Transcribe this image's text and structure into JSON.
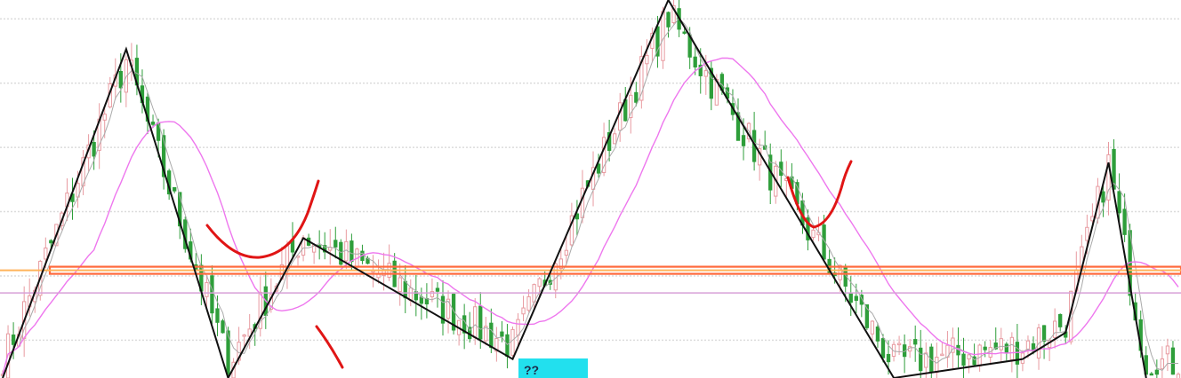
{
  "chart_data": {
    "type": "candlestick",
    "title": "",
    "xlabel": "",
    "ylabel": "",
    "ylim": [
      0,
      100
    ],
    "grid": true,
    "support_level": 28.5,
    "lower_line_level": 22.5,
    "candles": [],
    "zigzag_points": [
      [
        0,
        0
      ],
      [
        23,
        87
      ],
      [
        42,
        0
      ],
      [
        56,
        37
      ],
      [
        95,
        5
      ],
      [
        124,
        100
      ],
      [
        166,
        0
      ],
      [
        190,
        5
      ],
      [
        198,
        12
      ],
      [
        206,
        57
      ],
      [
        213,
        0
      ]
    ],
    "label_text": "??",
    "colors": {
      "bull": "#e89aa0",
      "bear": "#2e9e3a",
      "ma_short": "#ee77ee",
      "ma_long": "#d8a0d8",
      "zigzag": "#111111",
      "support": "#ff6a3d",
      "annotation": "#e01515",
      "label_bg": "#22e0ee"
    }
  }
}
